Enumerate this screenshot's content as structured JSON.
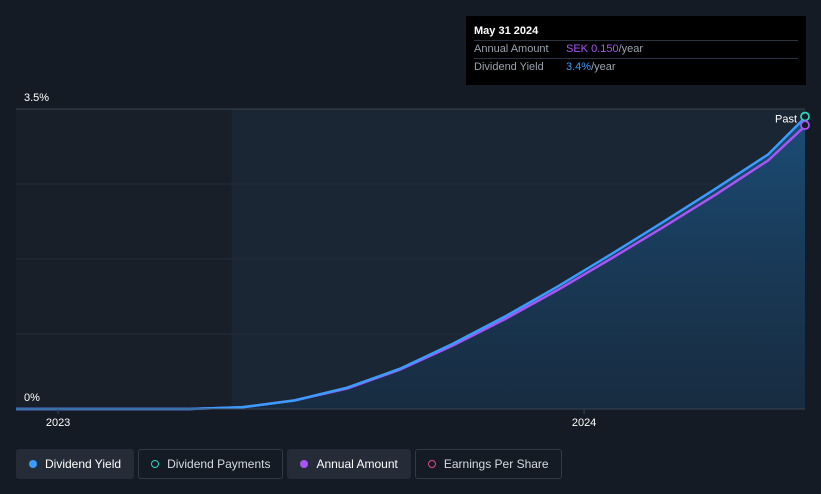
{
  "chart_data": {
    "type": "area",
    "y_ticks": [
      "3.5%",
      "0%"
    ],
    "x_ticks": [
      "2023",
      "2024"
    ],
    "ylim": [
      0,
      3.5
    ],
    "xlim": [
      2022.92,
      2024.42
    ],
    "past_start": 2023.33,
    "past_label": "Past",
    "series": [
      {
        "name": "Dividend Yield",
        "color": "#3b9cff",
        "x": [
          2022.92,
          2023.1,
          2023.25,
          2023.35,
          2023.45,
          2023.55,
          2023.65,
          2023.75,
          2023.85,
          2023.95,
          2024.05,
          2024.15,
          2024.25,
          2024.35,
          2024.42
        ],
        "y": [
          0,
          0,
          0,
          0.02,
          0.1,
          0.25,
          0.47,
          0.76,
          1.08,
          1.43,
          1.8,
          2.18,
          2.57,
          2.97,
          3.4
        ]
      },
      {
        "name": "Annual Amount",
        "color": "#a855f7",
        "x": [
          2022.92,
          2023.1,
          2023.25,
          2023.35,
          2023.45,
          2023.55,
          2023.65,
          2023.75,
          2023.85,
          2023.95,
          2024.05,
          2024.15,
          2024.25,
          2024.35,
          2024.42
        ],
        "y": [
          0,
          0,
          0,
          0.02,
          0.1,
          0.24,
          0.46,
          0.74,
          1.05,
          1.39,
          1.75,
          2.12,
          2.5,
          2.9,
          3.3
        ]
      }
    ]
  },
  "tooltip": {
    "date": "May 31 2024",
    "annual_label": "Annual Amount",
    "annual_value": "SEK 0.150",
    "annual_unit": "/year",
    "yield_label": "Dividend Yield",
    "yield_value": "3.4%",
    "yield_unit": "/year"
  },
  "legend": [
    {
      "label": "Dividend Yield",
      "color": "#3b9cff",
      "filled": true,
      "active": true
    },
    {
      "label": "Dividend Payments",
      "color": "#2dd4bf",
      "filled": false,
      "active": false
    },
    {
      "label": "Annual Amount",
      "color": "#a855f7",
      "filled": true,
      "active": true
    },
    {
      "label": "Earnings Per Share",
      "color": "#e04a8a",
      "filled": false,
      "active": false
    }
  ]
}
